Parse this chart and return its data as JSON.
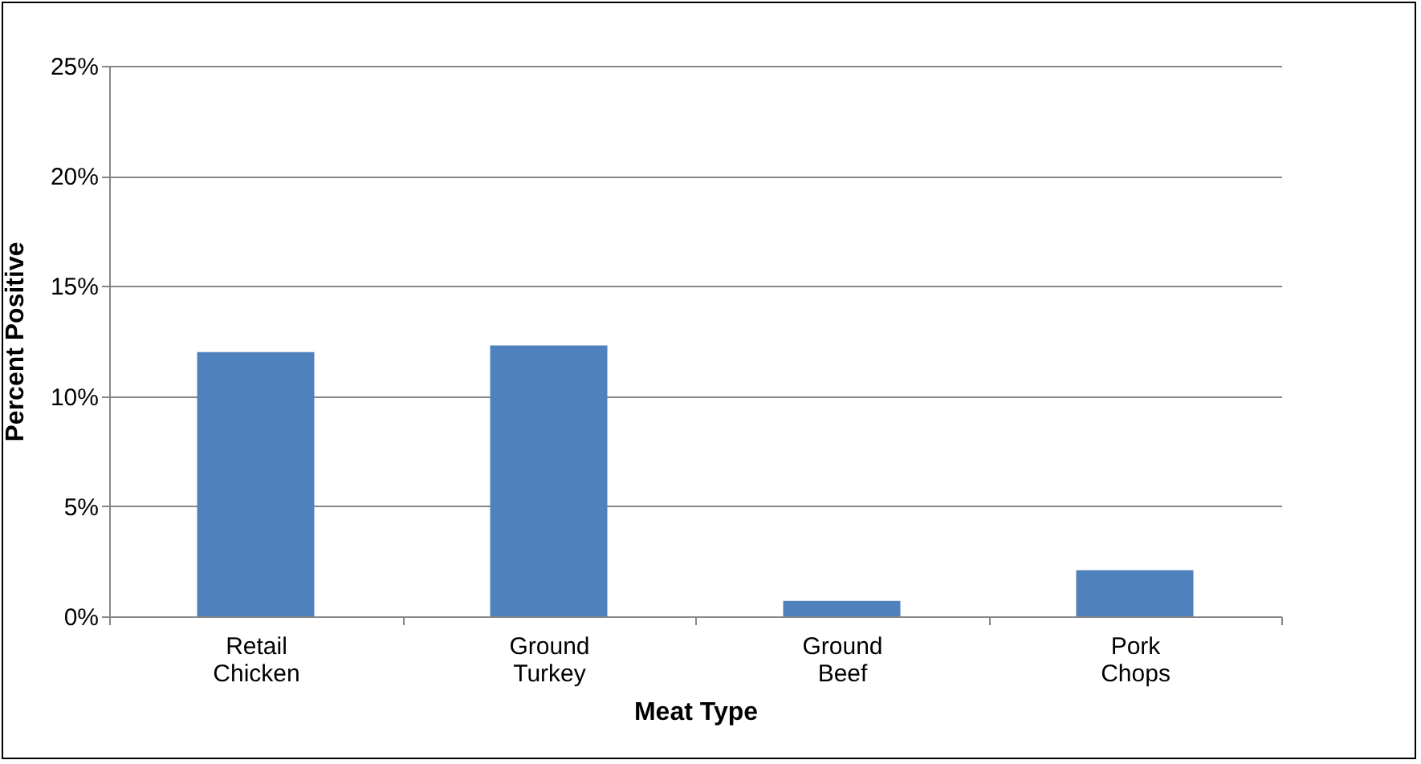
{
  "chart_data": {
    "type": "bar",
    "xlabel": "Meat Type",
    "ylabel": "Percent Positive",
    "categories": [
      "Retail Chicken",
      "Ground Turkey",
      "Ground Beef",
      "Pork Chops"
    ],
    "values": [
      12.0,
      12.3,
      0.7,
      2.1
    ],
    "color": "#4f81bd",
    "ylim": [
      0,
      25
    ],
    "yticks": [
      {
        "value": 0,
        "label": "0%"
      },
      {
        "value": 5,
        "label": "5%"
      },
      {
        "value": 10,
        "label": "10%"
      },
      {
        "value": 15,
        "label": "15%"
      },
      {
        "value": 20,
        "label": "20%"
      },
      {
        "value": 25,
        "label": "25%"
      }
    ],
    "grid": "y"
  }
}
